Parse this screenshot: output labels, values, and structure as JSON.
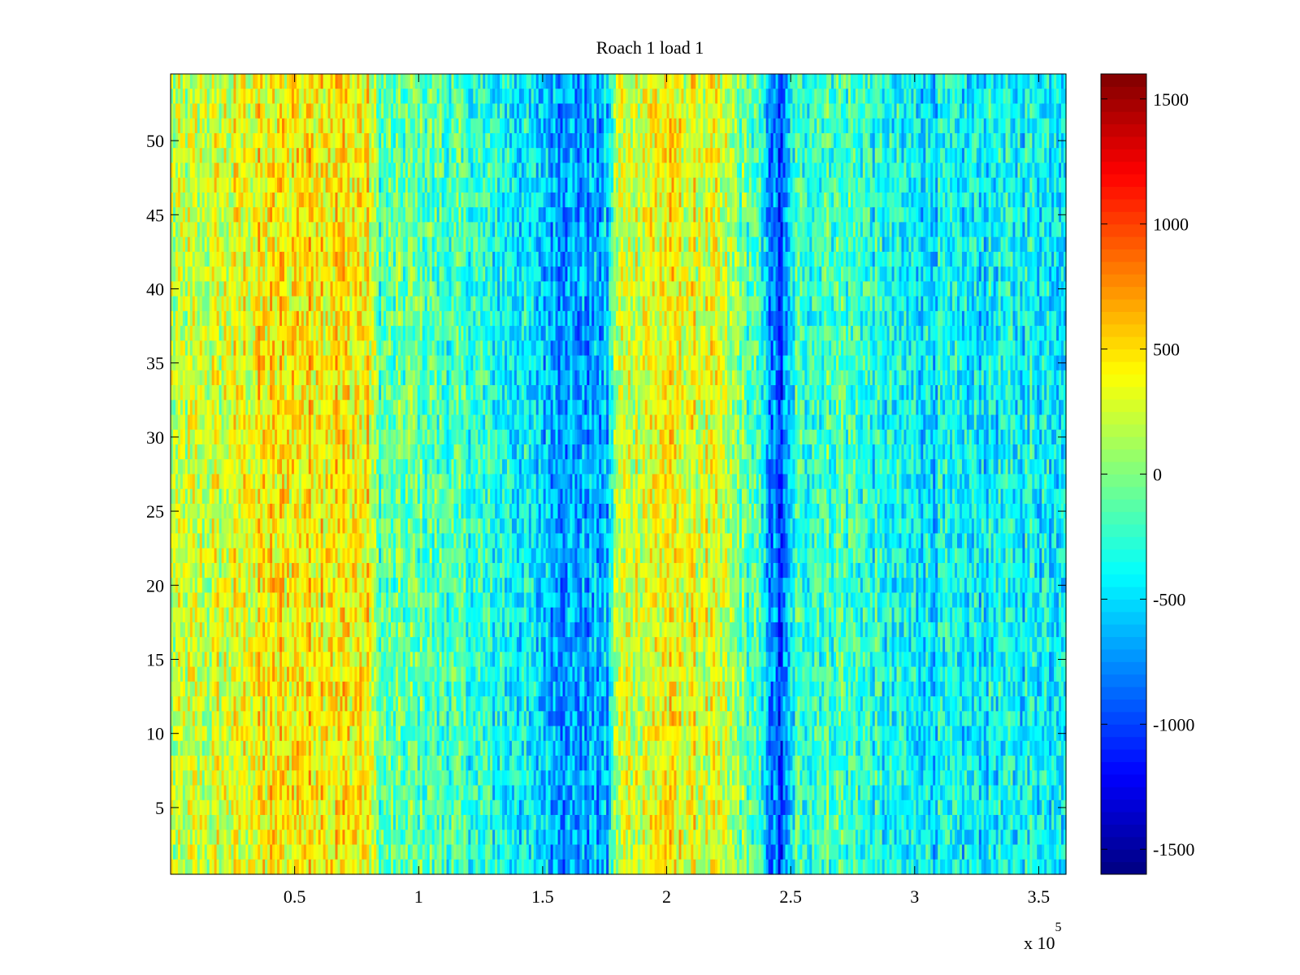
{
  "chart_data": {
    "type": "heatmap",
    "title": "Roach 1 load 1",
    "xlabel": "",
    "ylabel": "",
    "x_range": [
      0,
      361000
    ],
    "y_range": [
      0.5,
      54.5
    ],
    "x_ticks": [
      50000,
      100000,
      150000,
      200000,
      250000,
      300000,
      350000
    ],
    "x_tick_labels": [
      "0.5",
      "1",
      "1.5",
      "2",
      "2.5",
      "3",
      "3.5"
    ],
    "x_exponent_label": "x 10",
    "x_exponent_power": "5",
    "y_ticks": [
      5,
      10,
      15,
      20,
      25,
      30,
      35,
      40,
      45,
      50
    ],
    "y_tick_labels": [
      "5",
      "10",
      "15",
      "20",
      "25",
      "30",
      "35",
      "40",
      "45",
      "50"
    ],
    "rows": 54,
    "colorbar": {
      "colormap": "jet",
      "clim": [
        -1600,
        1600
      ],
      "ticks": [
        -1500,
        -1000,
        -500,
        0,
        500,
        1000,
        1500
      ],
      "tick_labels": [
        "-1500",
        "-1000",
        "-500",
        "0",
        "500",
        "1000",
        "1500"
      ]
    },
    "column_profile": [
      {
        "x": 0,
        "mean": 150
      },
      {
        "x": 20000,
        "mean": 250
      },
      {
        "x": 40000,
        "mean": 420
      },
      {
        "x": 60000,
        "mean": 480
      },
      {
        "x": 80000,
        "mean": 400
      },
      {
        "x": 84000,
        "mean": -150
      },
      {
        "x": 100000,
        "mean": -100
      },
      {
        "x": 120000,
        "mean": -250
      },
      {
        "x": 140000,
        "mean": -400
      },
      {
        "x": 160000,
        "mean": -700
      },
      {
        "x": 176000,
        "mean": -650
      },
      {
        "x": 180000,
        "mean": 200
      },
      {
        "x": 200000,
        "mean": 380
      },
      {
        "x": 220000,
        "mean": 250
      },
      {
        "x": 236000,
        "mean": -200
      },
      {
        "x": 246000,
        "mean": -1050
      },
      {
        "x": 252000,
        "mean": -250
      },
      {
        "x": 270000,
        "mean": -150
      },
      {
        "x": 290000,
        "mean": -400
      },
      {
        "x": 320000,
        "mean": -450
      },
      {
        "x": 361000,
        "mean": -350
      }
    ]
  }
}
